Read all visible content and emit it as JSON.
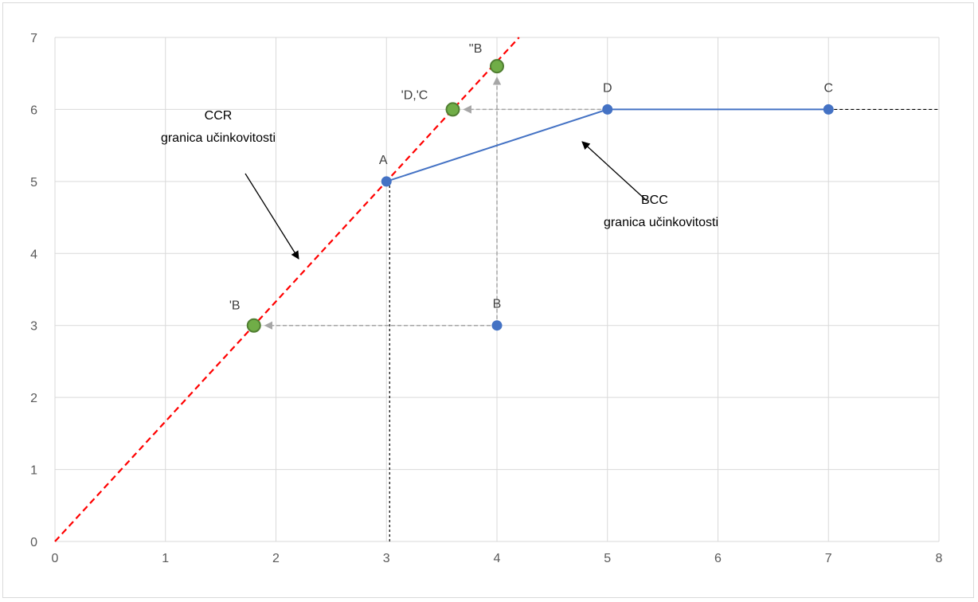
{
  "chart_data": {
    "type": "scatter",
    "xlim": [
      0,
      8
    ],
    "ylim": [
      0,
      7
    ],
    "x_ticks": [
      "0",
      "1",
      "2",
      "3",
      "4",
      "5",
      "6",
      "7",
      "8"
    ],
    "y_ticks": [
      "0",
      "1",
      "2",
      "3",
      "4",
      "5",
      "6",
      "7"
    ],
    "grid": true,
    "colors": {
      "frontier": "#4472c4",
      "projection": "#70ad47",
      "ccr_line": "#ff0000",
      "guide": "#a6a6a6",
      "grid": "#d9d9d9"
    },
    "units": [
      {
        "label": "A",
        "x": 3,
        "y": 5
      },
      {
        "label": "B",
        "x": 4,
        "y": 3
      },
      {
        "label": "C",
        "x": 7,
        "y": 6
      },
      {
        "label": "D",
        "x": 5,
        "y": 6
      }
    ],
    "projections": [
      {
        "label": "'B",
        "x": 1.8,
        "y": 3
      },
      {
        "label": "'D,'C",
        "x": 3.6,
        "y": 6
      },
      {
        "label": "''B",
        "x": 4,
        "y": 6.6
      }
    ],
    "bcc_frontier": [
      [
        3,
        5
      ],
      [
        5,
        6
      ],
      [
        7,
        6
      ]
    ],
    "bcc_extension": [
      [
        7,
        6
      ],
      [
        8,
        6
      ]
    ],
    "ccr_frontier": [
      [
        0,
        0
      ],
      [
        4.2,
        7
      ]
    ],
    "vertical_guide_A": [
      [
        3,
        0
      ],
      [
        3,
        5
      ]
    ],
    "projection_arrows": [
      {
        "from": [
          4,
          3
        ],
        "to": [
          1.8,
          3
        ]
      },
      {
        "from": [
          4,
          3
        ],
        "to": [
          4,
          6.6
        ]
      },
      {
        "from": [
          5,
          6
        ],
        "to": [
          3.6,
          6
        ]
      }
    ],
    "annotations": [
      {
        "lines": [
          "CCR",
          "granica učinkovitosti"
        ]
      },
      {
        "lines": [
          "BCC",
          "granica učinkovitosti"
        ]
      }
    ]
  }
}
